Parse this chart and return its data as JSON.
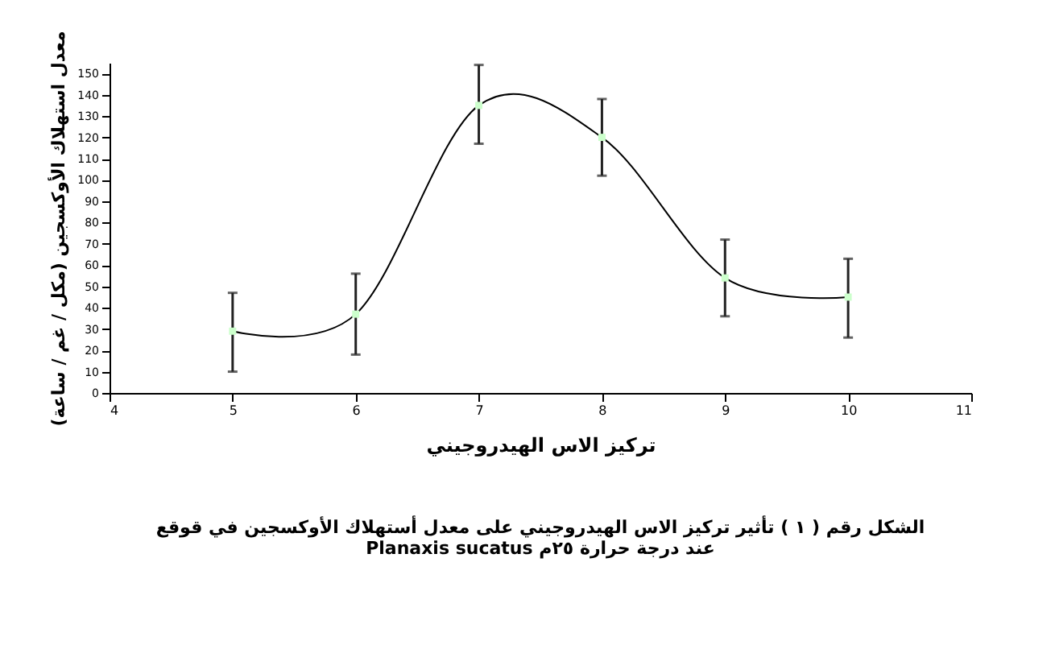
{
  "chart_data": {
    "type": "line",
    "xlabel": "تركيز الاس الهيدروجيني",
    "ylabel": "معدل استهلاك الأوكسجين (مكل / غم / ساعة)",
    "annotations": [
      "الشكل رقم ( ١ ) تأثير تركيز الاس الهيدروجيني على معدل أستهلاك الأوكسجين في قوقع",
      "Planaxis sucatus عند درجة حرارة ٢٥م"
    ],
    "x": [
      5,
      6,
      7,
      8,
      9,
      10
    ],
    "series": [
      {
        "color": "#000000",
        "values": [
          29,
          37,
          135,
          120,
          54,
          45
        ],
        "errors": [
          [
            10,
            47
          ],
          [
            18,
            56
          ],
          [
            117,
            154
          ],
          [
            102,
            138
          ],
          [
            36,
            72
          ],
          [
            26,
            63
          ]
        ]
      }
    ],
    "xlim": [
      4,
      11
    ],
    "xticks": [
      4,
      5,
      6,
      7,
      8,
      9,
      10,
      11
    ],
    "ylim": [
      0,
      155
    ],
    "yticks": [
      0,
      10,
      20,
      30,
      40,
      50,
      60,
      70,
      80,
      90,
      100,
      110,
      120,
      130,
      140,
      150
    ],
    "grid": false,
    "marker": "square",
    "line_style": "solid"
  }
}
